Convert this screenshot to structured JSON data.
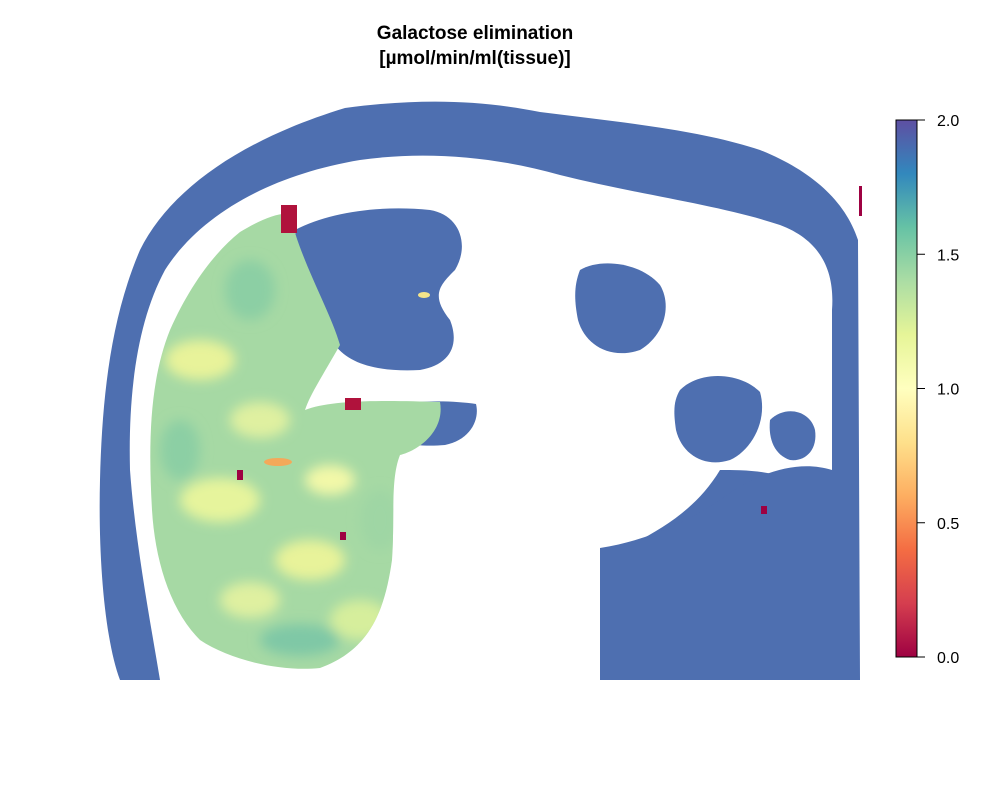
{
  "chart_data": {
    "type": "heatmap",
    "title": "Galactose elimination",
    "subtitle": "[µmol/min/ml(tissue)]",
    "xlabel": "",
    "ylabel": "",
    "colorbar": {
      "range": [
        0.0,
        2.0
      ],
      "ticks": [
        "0.0",
        "0.5",
        "1.0",
        "1.5",
        "2.0"
      ],
      "colormap": "Spectral",
      "stops": [
        "#9e0142",
        "#d53e4f",
        "#f46d43",
        "#fdae61",
        "#fee08b",
        "#ffffbf",
        "#e6f598",
        "#abdda4",
        "#66c2a5",
        "#3288bd",
        "#5e4fa2"
      ]
    },
    "description_colors": {
      "background_tissue": "#4e6fb0",
      "liver_parenchyma": "#9fd4a3",
      "hot_spot": "#b0123c"
    },
    "grid": false,
    "legend_position": "right"
  }
}
